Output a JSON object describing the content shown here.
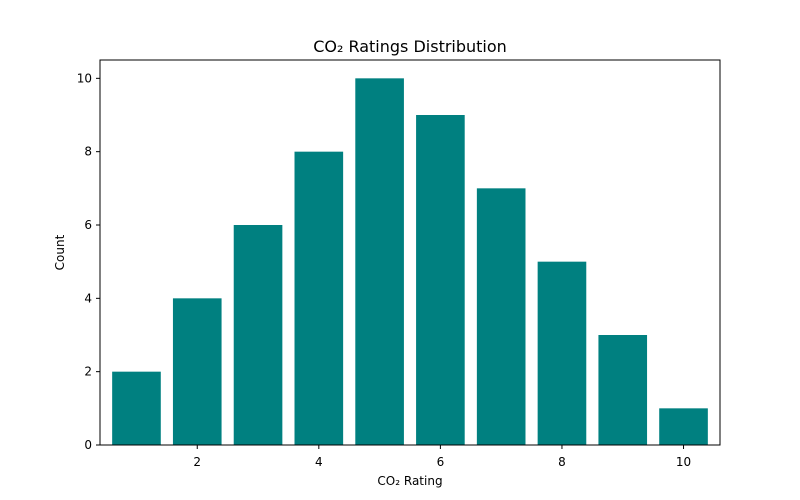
{
  "chart_data": {
    "type": "bar",
    "title": "CO₂ Ratings Distribution",
    "xlabel": "CO₂ Rating",
    "ylabel": "Count",
    "x": [
      1,
      2,
      3,
      4,
      5,
      6,
      7,
      8,
      9,
      10
    ],
    "values": [
      2,
      4,
      6,
      8,
      10,
      9,
      7,
      5,
      3,
      1
    ],
    "xlim": [
      0.4,
      10.6
    ],
    "ylim": [
      0,
      10.5
    ],
    "xticks": [
      2,
      4,
      6,
      8,
      10
    ],
    "yticks": [
      0,
      2,
      4,
      6,
      8,
      10
    ],
    "bar_color": "#008080",
    "grid": false,
    "legend": "none"
  }
}
